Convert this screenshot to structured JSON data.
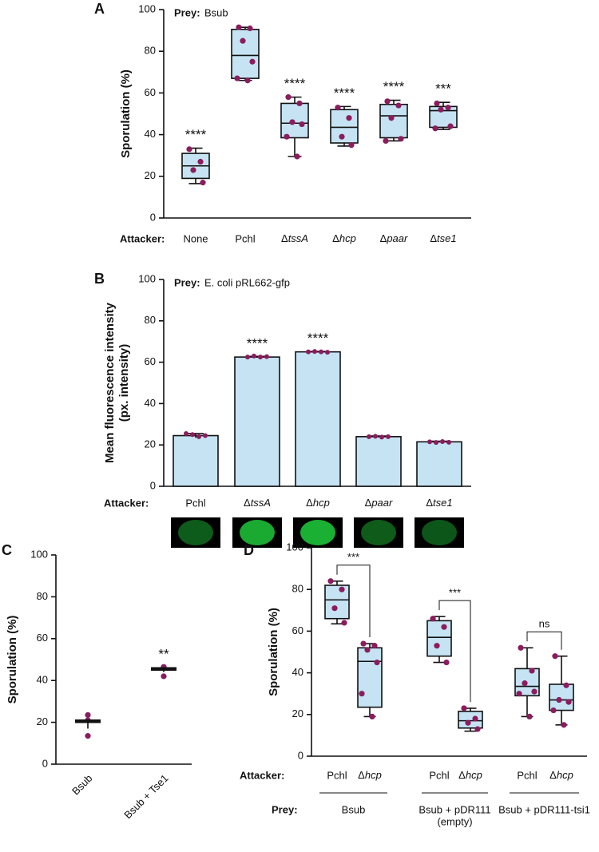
{
  "chart_data": [
    {
      "panel": "A",
      "type": "box",
      "prey_label": "Prey:",
      "prey": "Bsub",
      "attacker_label": "Attacker:",
      "y_label": "Sporulation (%)",
      "ylim": [
        0,
        100
      ],
      "yticks": [
        0,
        20,
        40,
        60,
        80,
        100
      ],
      "box_color": "#c5e3f3",
      "point_color": "#8b1c5e",
      "categories": [
        "None",
        "Pchl",
        "ΔtssA",
        "Δhcp",
        "Δpaar",
        "Δtse1"
      ],
      "boxes": [
        {
          "whisker_low": 16.5,
          "q1": 19,
          "median": 25,
          "q3": 31,
          "whisker_high": 33.5,
          "points": [
            33,
            27,
            23,
            17
          ]
        },
        {
          "whisker_low": 66,
          "q1": 67,
          "median": 78,
          "q3": 90.5,
          "whisker_high": 91.5,
          "points": [
            91.5,
            91,
            85,
            75,
            67,
            66
          ]
        },
        {
          "whisker_low": 29.5,
          "q1": 38.5,
          "median": 45.5,
          "q3": 55,
          "whisker_high": 58,
          "points": [
            58,
            55,
            46,
            45,
            39,
            29.5
          ]
        },
        {
          "whisker_low": 34.5,
          "q1": 36,
          "median": 43.5,
          "q3": 52,
          "whisker_high": 53.5,
          "points": [
            53,
            48,
            39,
            35
          ]
        },
        {
          "whisker_low": 37,
          "q1": 38.5,
          "median": 49,
          "q3": 54.5,
          "whisker_high": 56.5,
          "points": [
            56,
            54,
            48,
            38,
            37
          ]
        },
        {
          "whisker_low": 42.5,
          "q1": 43.5,
          "median": 51.5,
          "q3": 53.5,
          "whisker_high": 55.5,
          "points": [
            55,
            53,
            52,
            44,
            43
          ]
        }
      ],
      "annotations": [
        "****",
        null,
        "****",
        "****",
        "****",
        "***"
      ]
    },
    {
      "panel": "B",
      "type": "bar",
      "prey_label": "Prey:",
      "prey": "E. coli pRL662-gfp",
      "attacker_label": "Attacker:",
      "y_label": [
        "Mean fluorescence intensity",
        "(px. intensity)"
      ],
      "ylim": [
        0,
        100
      ],
      "yticks": [
        0,
        20,
        40,
        60,
        80,
        100
      ],
      "color": "#c5e3f3",
      "point_color": "#8b1c5e",
      "categories": [
        "Pchl",
        "ΔtssA",
        "Δhcp",
        "Δpaar",
        "Δtse1"
      ],
      "values": [
        24.5,
        62.5,
        65,
        24,
        21.5
      ],
      "errors": [
        1,
        0.3,
        0.2,
        0.3,
        0.3
      ],
      "points": [
        [
          25.5,
          25,
          24,
          24.5
        ],
        [
          62.5,
          63,
          62.5,
          62.7
        ],
        [
          65,
          65.2,
          65,
          64.8
        ],
        [
          24,
          24.2,
          23.8,
          24
        ],
        [
          21.5,
          21.2,
          21.6,
          21.3
        ]
      ],
      "annotations": [
        null,
        "****",
        "****",
        null,
        null
      ]
    },
    {
      "panel": "C",
      "type": "dot",
      "y_label": "Sporulation (%)",
      "ylim": [
        0,
        100
      ],
      "yticks": [
        0,
        20,
        40,
        60,
        80,
        100
      ],
      "point_color": "#8b1c5e",
      "categories": [
        "Bsub",
        "Bsub + Tse1"
      ],
      "values": [
        20.5,
        45.5
      ],
      "errors": [
        3.5,
        1.5
      ],
      "points": [
        [
          23.5,
          21,
          13.5
        ],
        [
          46.5,
          46,
          42
        ]
      ],
      "annotations": [
        null,
        "**"
      ]
    },
    {
      "panel": "D",
      "type": "grouped_box",
      "attacker_label": "Attacker:",
      "prey_label": "Prey:",
      "y_label": "Sporulation (%)",
      "ylim": [
        0,
        100
      ],
      "yticks": [
        0,
        20,
        40,
        60,
        80,
        100
      ],
      "box_color": "#c5e3f3",
      "point_color": "#8b1c5e",
      "groups": [
        {
          "prey": [
            "Bsub"
          ],
          "significance": "***",
          "boxes": [
            {
              "category": "Pchl",
              "whisker_low": 63.5,
              "q1": 66,
              "median": 75,
              "q3": 82,
              "whisker_high": 84,
              "points": [
                84,
                80,
                71,
                64
              ]
            },
            {
              "category": "Δhcp",
              "whisker_low": 19,
              "q1": 23.5,
              "median": 45.5,
              "q3": 52,
              "whisker_high": 54,
              "points": [
                54,
                53,
                51,
                45,
                30,
                19
              ]
            }
          ]
        },
        {
          "prey": [
            "Bsub + pDR111",
            "(empty)"
          ],
          "significance": "***",
          "boxes": [
            {
              "category": "Pchl",
              "whisker_low": 45,
              "q1": 48,
              "median": 57,
              "q3": 65,
              "whisker_high": 67,
              "points": [
                66,
                62,
                53,
                45
              ]
            },
            {
              "category": "Δhcp",
              "whisker_low": 12,
              "q1": 13.5,
              "median": 17,
              "q3": 21.5,
              "whisker_high": 23,
              "points": [
                23,
                18,
                16,
                13
              ]
            }
          ]
        },
        {
          "prey": [
            "Bsub + pDR111-tsi1"
          ],
          "significance": "ns",
          "boxes": [
            {
              "category": "Pchl",
              "whisker_low": 19,
              "q1": 29,
              "median": 33.5,
              "q3": 42,
              "whisker_high": 52,
              "points": [
                52,
                41,
                35,
                31,
                30,
                19
              ]
            },
            {
              "category": "Δhcp",
              "whisker_low": 15,
              "q1": 22,
              "median": 27,
              "q3": 34.5,
              "whisker_high": 48,
              "points": [
                48,
                34,
                27,
                26,
                22,
                15
              ]
            }
          ]
        }
      ]
    }
  ]
}
